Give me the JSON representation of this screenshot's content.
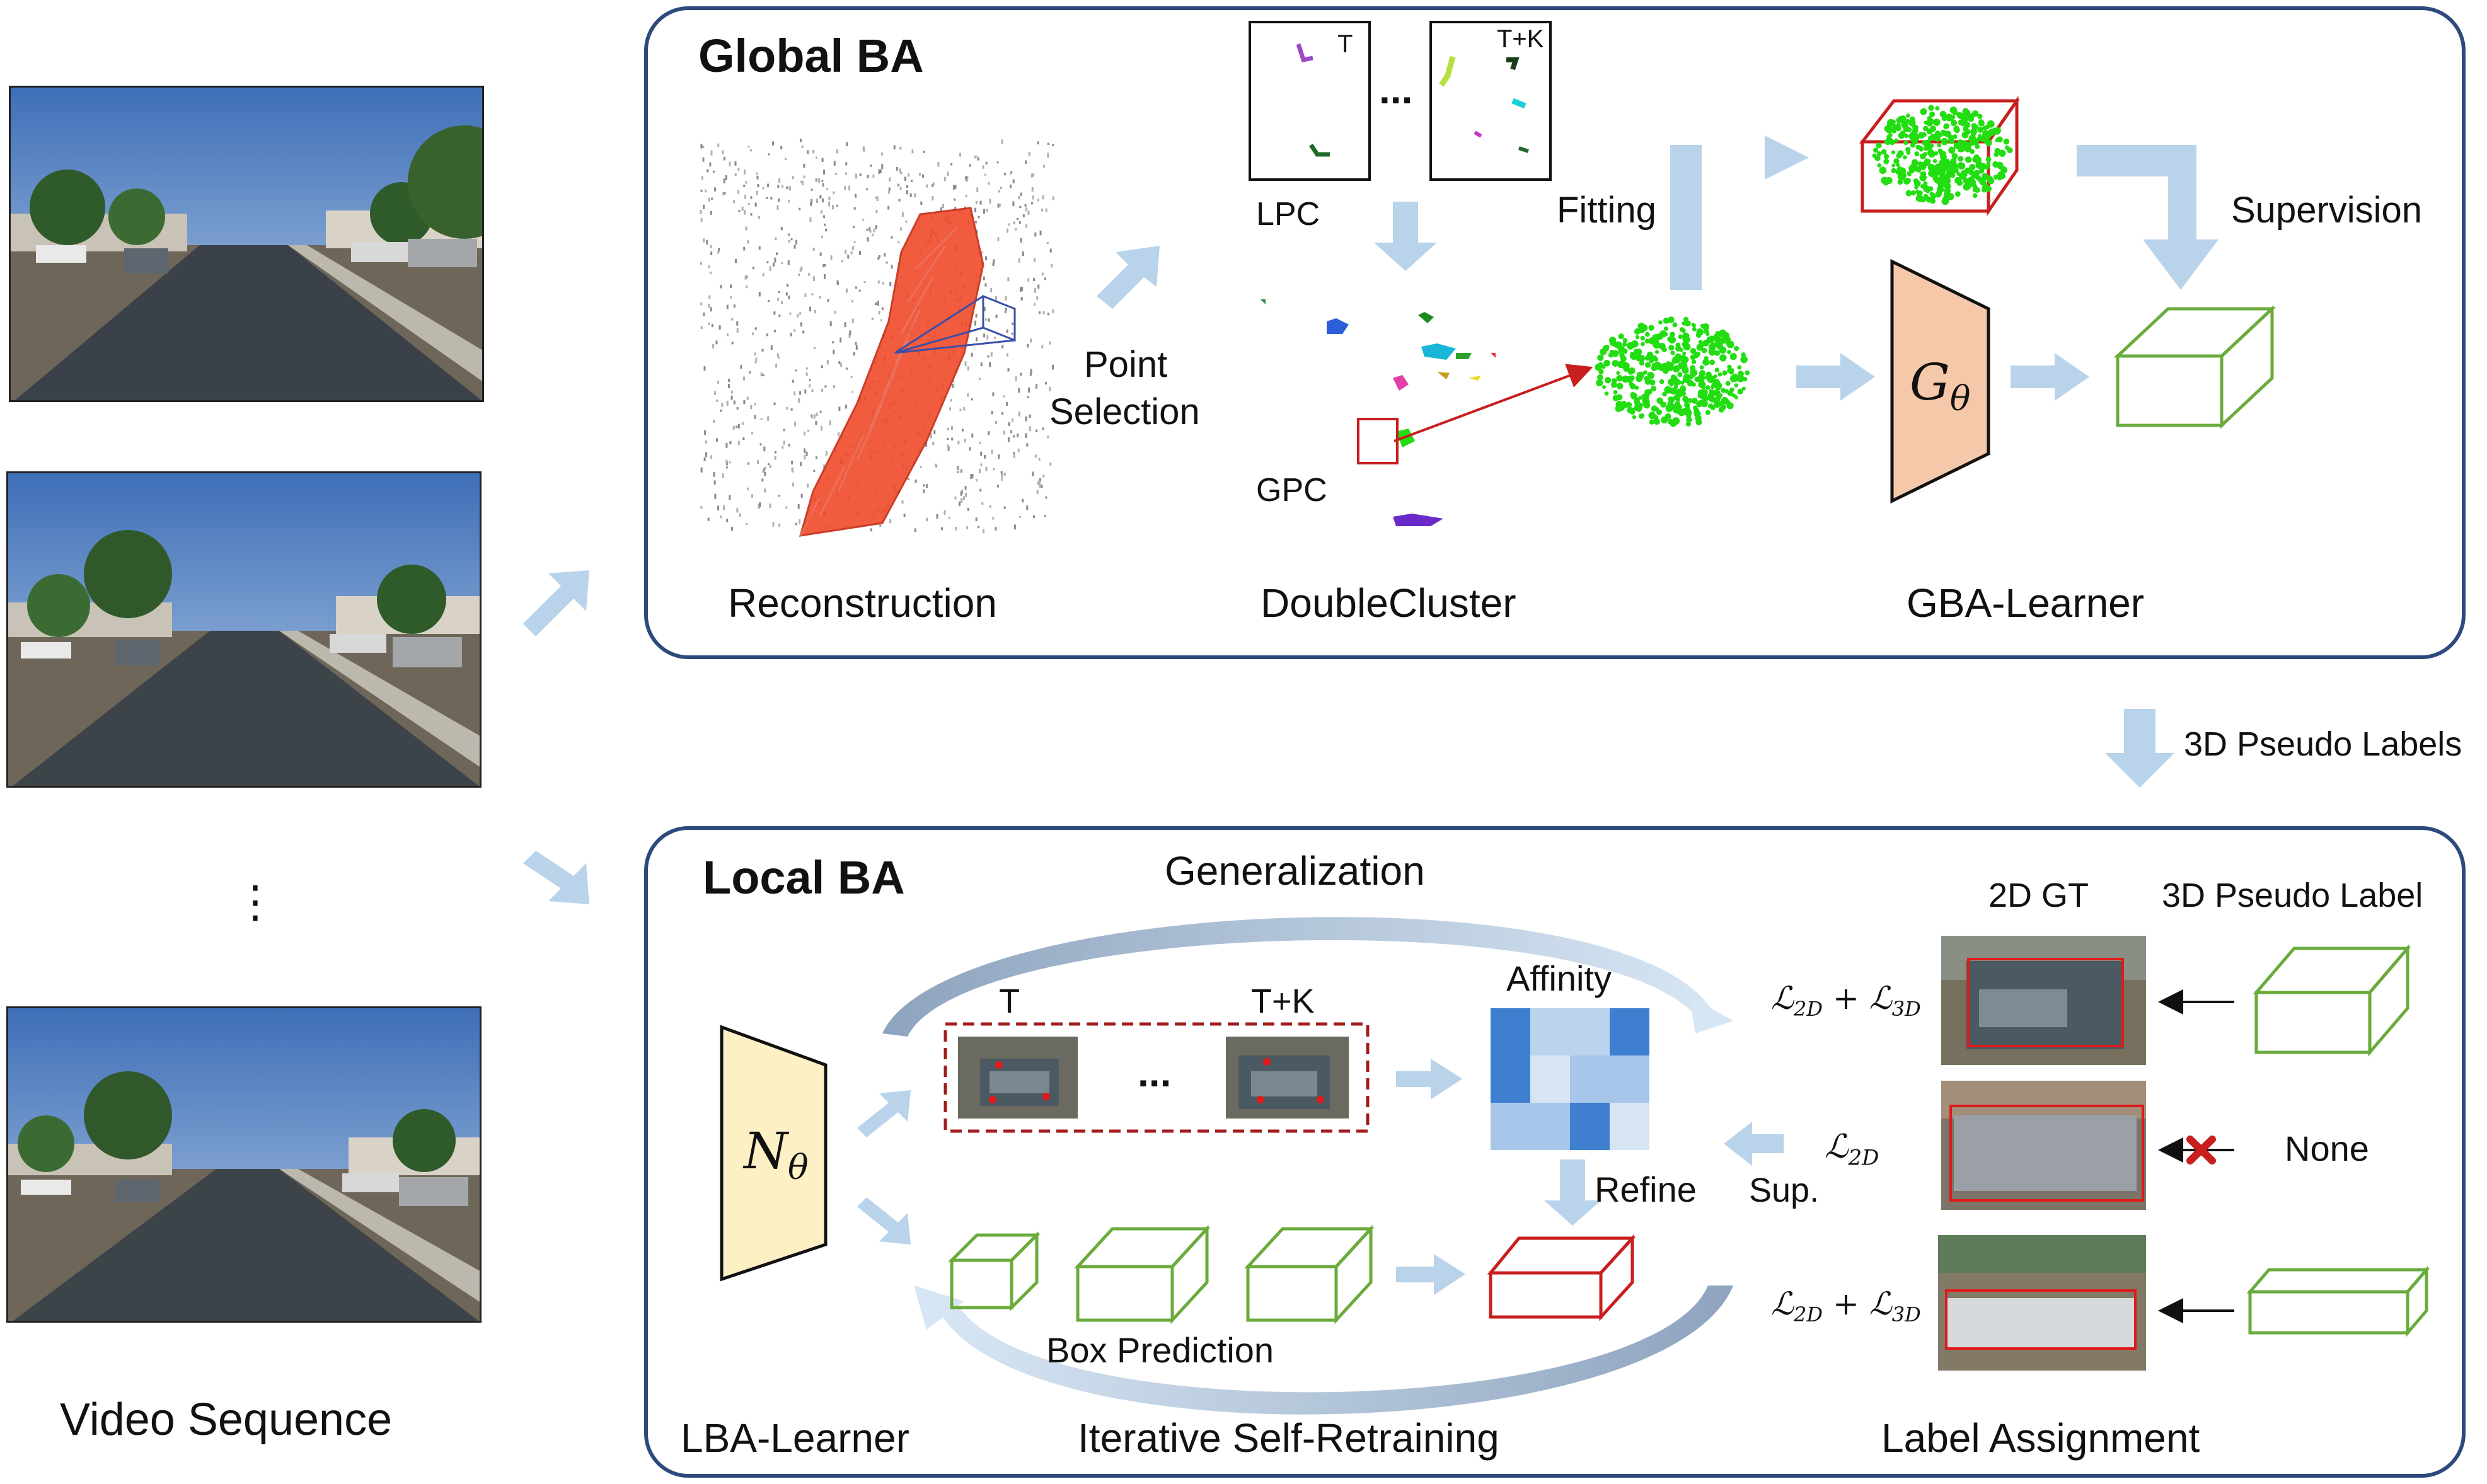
{
  "video": {
    "label": "Video Sequence",
    "ellipsis": "⋮",
    "frame_count_shown": 3
  },
  "global_ba": {
    "title": "Global BA",
    "reconstruction_label": "Reconstruction",
    "point_selection_line1": "Point",
    "point_selection_line2": "Selection",
    "lpc_label": "LPC",
    "lpc_frame_first": "T",
    "lpc_frame_last": "T+K",
    "lpc_ellipsis": "...",
    "gpc_label": "GPC",
    "doublecluster_label": "DoubleCluster",
    "fitting_label": "Fitting",
    "supervision_label": "Supervision",
    "learner_symbol": "G",
    "learner_subscript": "θ",
    "learner_label": "GBA-Learner"
  },
  "pseudo_labels_label": "3D Pseudo Labels",
  "local_ba": {
    "title": "Local BA",
    "generalization_label": "Generalization",
    "learner_symbol": "N",
    "learner_subscript": "θ",
    "learner_label": "LBA-Learner",
    "frame_first": "T",
    "frame_last": "T+K",
    "frame_ellipsis": "...",
    "affinity_label": "Affinity",
    "refine_label": "Refine",
    "box_prediction_label": "Box Prediction",
    "retraining_label": "Iterative Self-Retraining",
    "sup_label": "Sup.",
    "sup_loss": "ℒ",
    "sup_loss_sub": "2D",
    "label_assignment_label": "Label Assignment",
    "gt_header": "2D GT",
    "pseudo_header": "3D Pseudo Label",
    "rows": [
      {
        "loss_a": "ℒ",
        "sub_a": "2D",
        "plus": "+",
        "loss_b": "ℒ",
        "sub_b": "3D",
        "pseudo": "box"
      },
      {
        "loss_a": "",
        "sub_a": "",
        "plus": "",
        "loss_b": "",
        "sub_b": "",
        "pseudo": "None"
      },
      {
        "loss_a": "ℒ",
        "sub_a": "2D",
        "plus": "+",
        "loss_b": "ℒ",
        "sub_b": "3D",
        "pseudo": "box"
      }
    ]
  },
  "colors": {
    "panel_border": "#2e4a7d",
    "arrow": "#b9d3ea",
    "box_green": "#6aab3c",
    "box_red": "#c81e1e",
    "g_learner_fill": "#f4c8a8",
    "n_learner_fill": "#fdf0c4",
    "cluster_green": "#22dd11",
    "reconstruction_red": "#f04a2a"
  }
}
